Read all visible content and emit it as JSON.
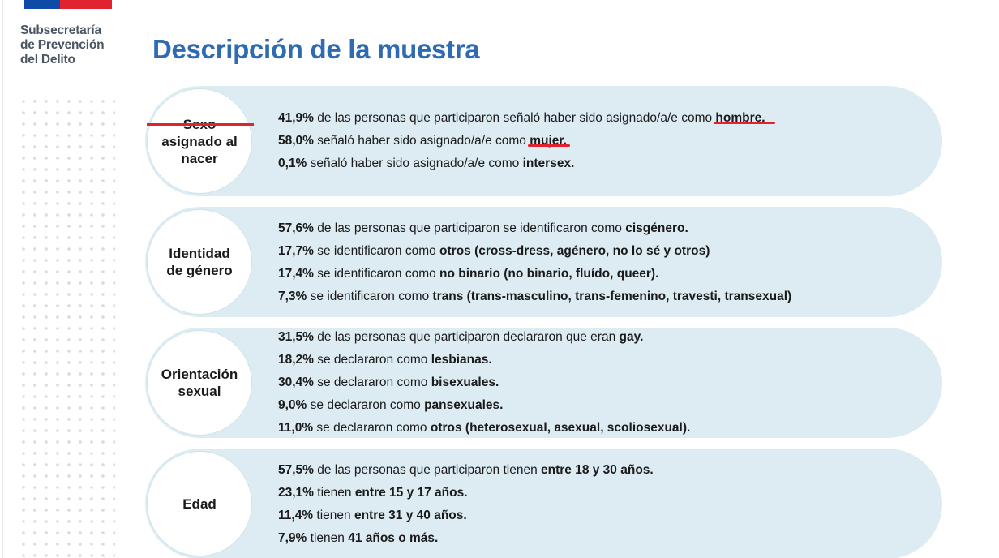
{
  "brand": {
    "line1": "Subsecretaría",
    "line2": "de Prevención",
    "line3": "del Delito",
    "flag_colors": [
      "#0f4aa6",
      "#e0232e"
    ]
  },
  "title": "Descripción de la muestra",
  "sections": [
    {
      "label": [
        "Sexo",
        "asignado al",
        "nacer"
      ],
      "items": [
        {
          "value": "41,9%",
          "text": " de las personas que participaron señaló haber sido asignado/a/e como ",
          "bold": "hombre."
        },
        {
          "value": "58,0%",
          "text": " señaló haber sido asignado/a/e como ",
          "bold": "mujer."
        },
        {
          "value": "0,1%",
          "text": " señaló haber sido asignado/a/e como ",
          "bold": "intersex."
        }
      ]
    },
    {
      "label": [
        "Identidad",
        "de género"
      ],
      "items": [
        {
          "value": "57,6%",
          "text": " de las personas que participaron se identificaron como ",
          "bold": "cisgénero."
        },
        {
          "value": "17,7%",
          "text": " se identificaron como ",
          "bold": "otros (cross-dress, agénero, no lo sé y otros)"
        },
        {
          "value": "17,4%",
          "text": " se identificaron como ",
          "bold": "no binario (no binario, fluído, queer)."
        },
        {
          "value": "7,3%",
          "text": " se identificaron como ",
          "bold": "trans (trans-masculino, trans-femenino, travesti, transexual)"
        }
      ]
    },
    {
      "label": [
        "Orientación",
        "sexual"
      ],
      "items": [
        {
          "value": "31,5%",
          "text": " de las personas que participaron declararon que eran ",
          "bold": "gay."
        },
        {
          "value": "18,2%",
          "text": " se declararon como ",
          "bold": "lesbianas."
        },
        {
          "value": "30,4%",
          "text": " se declararon como ",
          "bold": "bisexuales."
        },
        {
          "value": "9,0%",
          "text": " se declararon como ",
          "bold": "pansexuales."
        },
        {
          "value": "11,0%",
          "text": " se declararon como ",
          "bold": "otros (heterosexual, asexual, scoliosexual)."
        }
      ]
    },
    {
      "label": [
        "Edad"
      ],
      "items": [
        {
          "value": "57,5%",
          "text": " de las personas que participaron tienen ",
          "bold": "entre 18 y 30 años."
        },
        {
          "value": "23,1%",
          "text": " tienen ",
          "bold": "entre 15 y 17 años."
        },
        {
          "value": "11,4%",
          "text": " tienen ",
          "bold": "entre 31 y 40 años."
        },
        {
          "value": "7,9%",
          "text": " tienen ",
          "bold": "41 años o más."
        }
      ]
    }
  ],
  "colors": {
    "title": "#2f6bb3",
    "panel": "#ddecf3",
    "highlight": "#e0232e"
  }
}
